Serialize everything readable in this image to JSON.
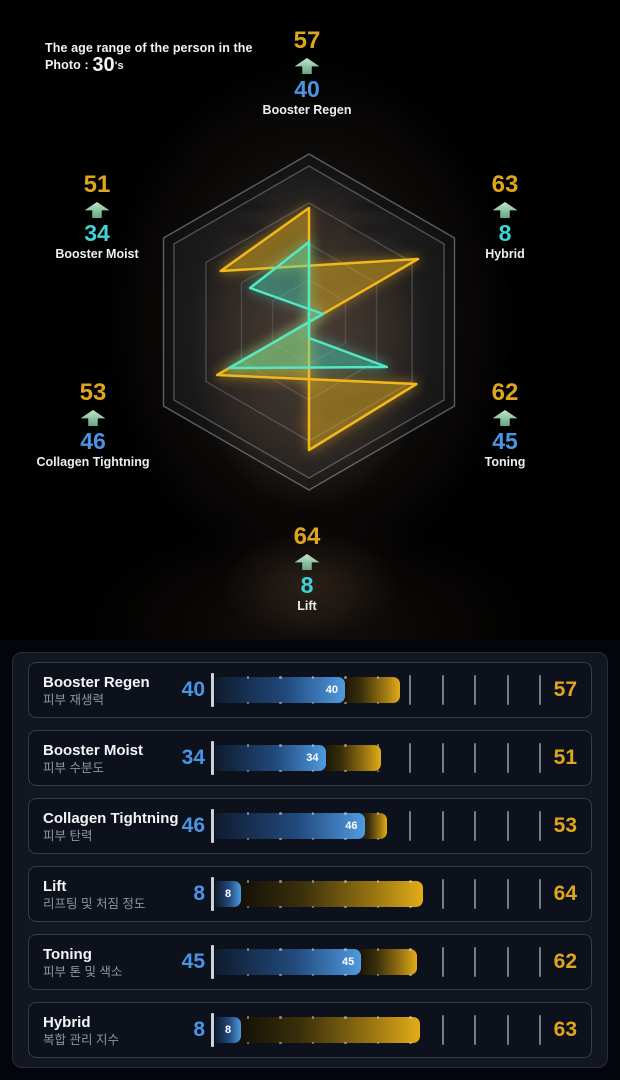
{
  "header": {
    "line1": "The age range of the person in the",
    "photo_label": "Photo :",
    "age": "30",
    "age_suffix": "'s"
  },
  "colors": {
    "gold": "#dfa51d",
    "blue": "#4a94e4",
    "cyan": "#3ed2d8",
    "gold_stroke": "#f2b81e",
    "teal_stroke": "#52e8c4",
    "arrow_green": "#8cc4a0",
    "panel_bg": "#11161f",
    "card_bg": "#0c111b"
  },
  "chart_data": [
    {
      "type": "radar",
      "title": "Skin analysis radar (current vs target)",
      "max": 100,
      "grid": "hexagon rings",
      "series_colors": {
        "current": "#52e8c4",
        "target": "#f2b81e"
      },
      "axes": [
        {
          "position": "top",
          "label": "Booster Regen",
          "current": 40,
          "target": 57,
          "current_color": "#4a94e4"
        },
        {
          "position": "upper-left",
          "label": "Booster Moist",
          "current": 34,
          "target": 51,
          "current_color": "#3ed2d8"
        },
        {
          "position": "upper-right",
          "label": "Hybrid",
          "current": 8,
          "target": 63,
          "current_color": "#3ed2d8"
        },
        {
          "position": "lower-left",
          "label": "Collagen Tightning",
          "current": 46,
          "target": 53,
          "current_color": "#4a94e4"
        },
        {
          "position": "lower-right",
          "label": "Toning",
          "current": 45,
          "target": 62,
          "current_color": "#4a94e4"
        },
        {
          "position": "bottom",
          "label": "Lift",
          "current": 8,
          "target": 64,
          "current_color": "#3ed2d8"
        }
      ]
    },
    {
      "type": "bar",
      "orientation": "horizontal",
      "x_range": [
        0,
        100
      ],
      "tick_interval": 10,
      "rows": [
        {
          "title": "Booster Regen",
          "subtitle": "피부 재생력",
          "current": 40,
          "target": 57
        },
        {
          "title": "Booster Moist",
          "subtitle": "피부 수분도",
          "current": 34,
          "target": 51
        },
        {
          "title": "Collagen Tightning",
          "subtitle": "피부 탄력",
          "current": 46,
          "target": 53
        },
        {
          "title": "Lift",
          "subtitle": "리프팅 및 처짐 정도",
          "current": 8,
          "target": 64
        },
        {
          "title": "Toning",
          "subtitle": "피부 톤 및 색소",
          "current": 45,
          "target": 62
        },
        {
          "title": "Hybrid",
          "subtitle": "복합 관리 지수",
          "current": 8,
          "target": 63
        }
      ]
    }
  ]
}
